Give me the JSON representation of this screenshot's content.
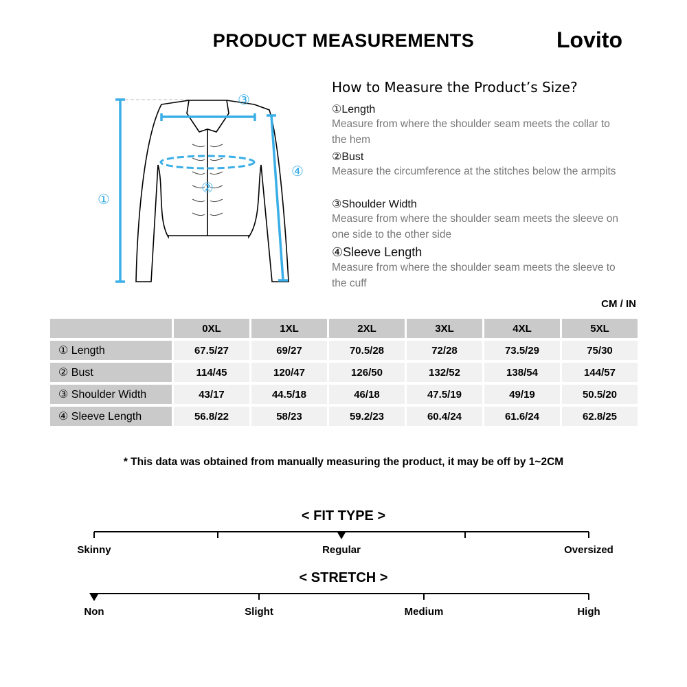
{
  "header": {
    "title": "PRODUCT MEASUREMENTS",
    "brand": "Lovito"
  },
  "guide": {
    "heading": "How to Measure the Product’s Size?",
    "items": [
      {
        "label": "①Length",
        "desc": "Measure from where the shoulder seam meets the collar to the hem"
      },
      {
        "label": "②Bust",
        "desc": "Measure the circumference at the stitches below the armpits"
      },
      {
        "label": "③Shoulder Width",
        "desc": "Measure from where the shoulder seam meets the sleeve on one side to the other side"
      },
      {
        "label": "④Sleeve Length",
        "desc": "Measure from where the shoulder seam meets the sleeve to the cuff"
      }
    ],
    "diagram_markers": [
      "①",
      "②",
      "③",
      "④"
    ],
    "accent_color": "#3aaee6"
  },
  "table": {
    "unit": "CM / IN",
    "sizes": [
      "0XL",
      "1XL",
      "2XL",
      "3XL",
      "4XL",
      "5XL"
    ],
    "rows": [
      {
        "label": "① Length",
        "values": [
          "67.5/27",
          "69/27",
          "70.5/28",
          "72/28",
          "73.5/29",
          "75/30"
        ]
      },
      {
        "label": "② Bust",
        "values": [
          "114/45",
          "120/47",
          "126/50",
          "132/52",
          "138/54",
          "144/57"
        ]
      },
      {
        "label": "③ Shoulder Width",
        "values": [
          "43/17",
          "44.5/18",
          "46/18",
          "47.5/19",
          "49/19",
          "50.5/20"
        ]
      },
      {
        "label": "④ Sleeve Length",
        "values": [
          "56.8/22",
          "58/23",
          "59.2/23",
          "60.4/24",
          "61.6/24",
          "62.8/25"
        ]
      }
    ]
  },
  "note": "* This data was obtained from manually measuring the product, it may be off by 1~2CM",
  "fit": {
    "title": "< FIT TYPE >",
    "labels": [
      "Skinny",
      "Regular",
      "Oversized"
    ],
    "selected": "Regular"
  },
  "stretch": {
    "title": "< STRETCH >",
    "labels": [
      "Non",
      "Slight",
      "Medium",
      "High"
    ],
    "selected": "Non"
  }
}
